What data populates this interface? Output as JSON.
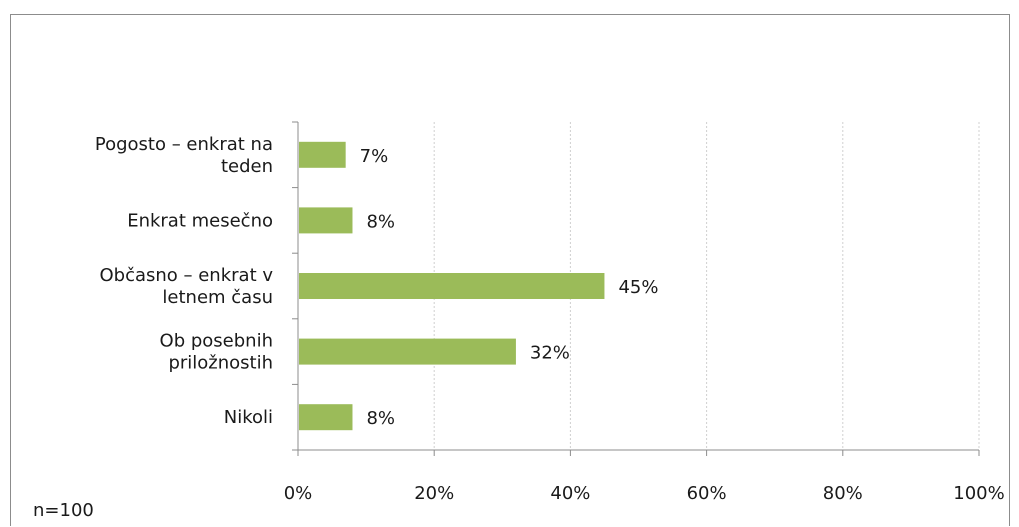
{
  "chart_data": {
    "type": "bar",
    "orientation": "horizontal",
    "categories": [
      [
        "Pogosto – enkrat na",
        "teden"
      ],
      [
        "Enkrat mesečno"
      ],
      [
        "Občasno – enkrat v",
        "letnem času"
      ],
      [
        "Ob posebnih",
        "priložnostih"
      ],
      [
        "Nikoli"
      ]
    ],
    "values": [
      7,
      8,
      45,
      32,
      8
    ],
    "value_labels": [
      "7%",
      "8%",
      "45%",
      "32%",
      "8%"
    ],
    "xlim": [
      0,
      100
    ],
    "x_ticks": [
      0,
      20,
      40,
      60,
      80,
      100
    ],
    "x_tick_labels": [
      "0%",
      "20%",
      "40%",
      "60%",
      "80%",
      "100%"
    ],
    "grid": true,
    "bar_color": "#9bbb59",
    "grid_color": "#d0d0d0",
    "axis_color": "#8c8c8c"
  },
  "note": "n=100"
}
